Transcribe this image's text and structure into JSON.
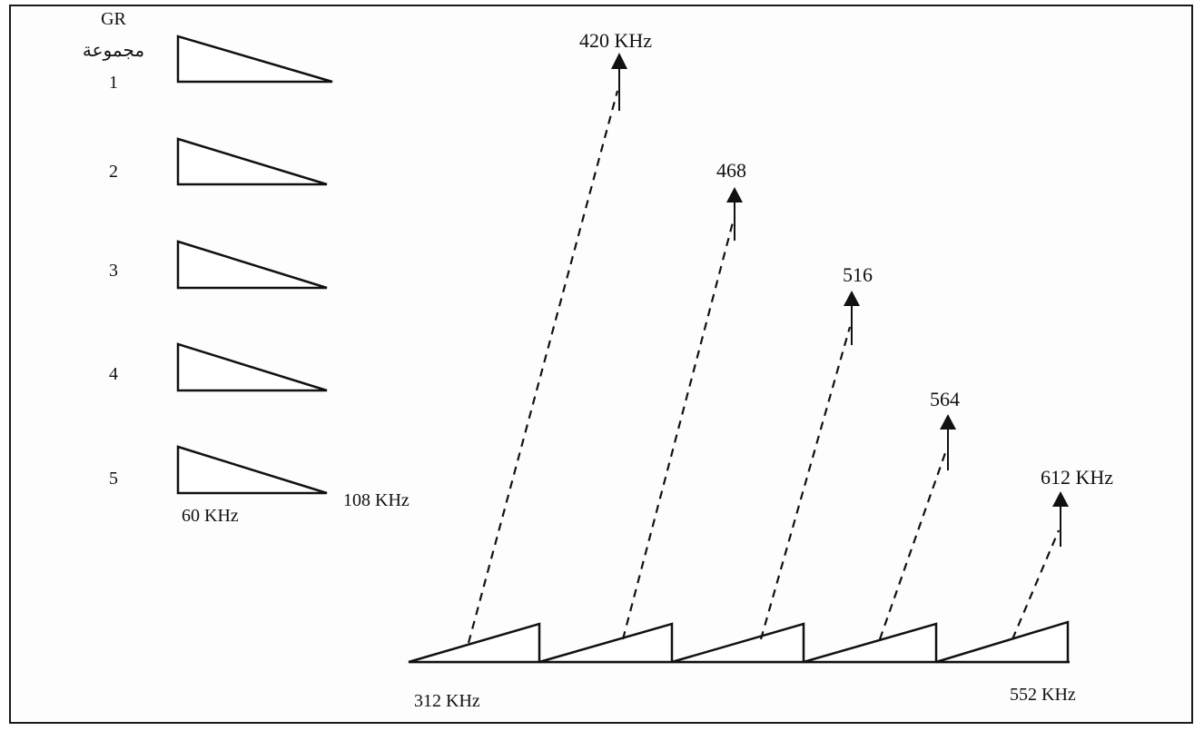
{
  "header": {
    "group_code": "GR",
    "group_word": "مجموعة"
  },
  "groups": [
    {
      "number": "1"
    },
    {
      "number": "2"
    },
    {
      "number": "3"
    },
    {
      "number": "4"
    },
    {
      "number": "5"
    }
  ],
  "input_band": {
    "low_label": "60 KHz",
    "high_label": "108 KHz"
  },
  "output_band": {
    "low_label": "312 KHz",
    "high_label": "552 KHz"
  },
  "carriers": [
    {
      "label": "420 KHz"
    },
    {
      "label": "468"
    },
    {
      "label": "516"
    },
    {
      "label": "564"
    },
    {
      "label": "612 KHz"
    }
  ]
}
